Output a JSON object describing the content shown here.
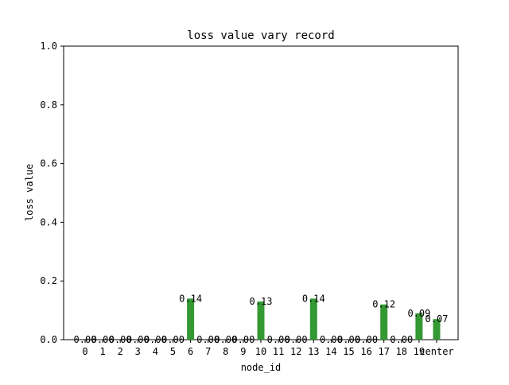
{
  "chart_data": {
    "type": "bar",
    "title": "loss value vary record",
    "xlabel": "node_id",
    "ylabel": "loss value",
    "ylim": [
      0,
      1.0
    ],
    "yticks": [
      0.0,
      0.2,
      0.4,
      0.6,
      0.8,
      1.0
    ],
    "ytick_labels": [
      "0.0",
      "0.2",
      "0.4",
      "0.6",
      "0.8",
      "1.0"
    ],
    "categories": [
      "0",
      "1",
      "2",
      "3",
      "4",
      "5",
      "6",
      "7",
      "8",
      "9",
      "10",
      "11",
      "12",
      "13",
      "14",
      "15",
      "16",
      "17",
      "18",
      "19",
      "center"
    ],
    "values": [
      0,
      0,
      0,
      0,
      0,
      0,
      0.14,
      0,
      0,
      0,
      0.13,
      0,
      0,
      0.14,
      0,
      0,
      0,
      0.12,
      0,
      0.09,
      0.07
    ],
    "value_labels": [
      "0.00",
      "0.00",
      "0.00",
      "0.00",
      "0.00",
      "0.00",
      "0.14",
      "0.00",
      "0.00",
      "0.00",
      "0.13",
      "0.00",
      "0.00",
      "0.14",
      "0.00",
      "0.00",
      "0.00",
      "0.12",
      "0.00",
      "0.09",
      "0.07"
    ],
    "bar_color": "#339933",
    "grid": false,
    "legend": "none"
  }
}
